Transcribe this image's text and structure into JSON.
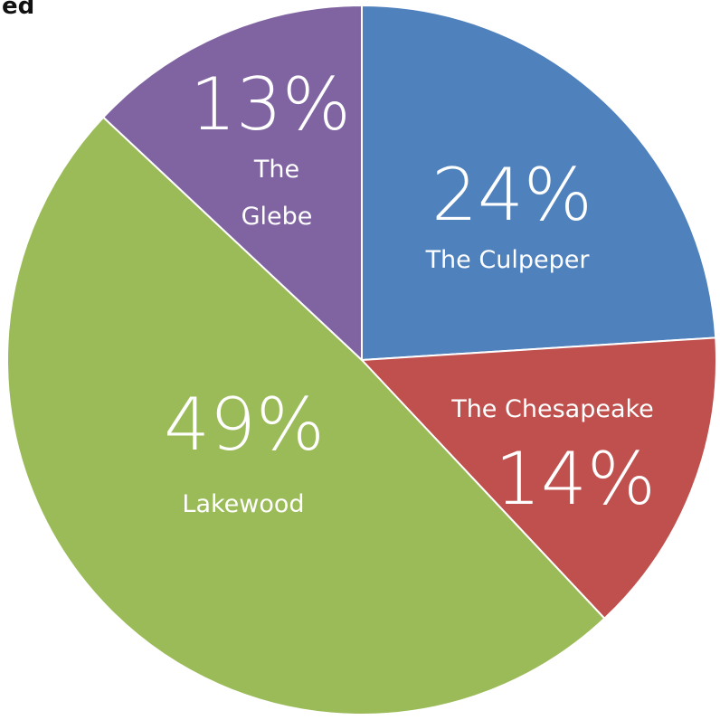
{
  "header": {
    "title_fragment": "ed"
  },
  "chart_data": {
    "type": "pie",
    "title": "",
    "start_angle_deg": 0,
    "direction": "clockwise",
    "slices": [
      {
        "label": "The Culpeper",
        "value": 24,
        "value_label": "24%",
        "color": "#4f81bd"
      },
      {
        "label": "The Chesapeake",
        "value": 14,
        "value_label": "14%",
        "color": "#c0504d"
      },
      {
        "label": "Lakewood",
        "value": 49,
        "value_label": "49%",
        "color": "#9bbb59"
      },
      {
        "label": "The Glebe",
        "value": 13,
        "value_label": "13%",
        "color": "#8064a2"
      }
    ]
  }
}
